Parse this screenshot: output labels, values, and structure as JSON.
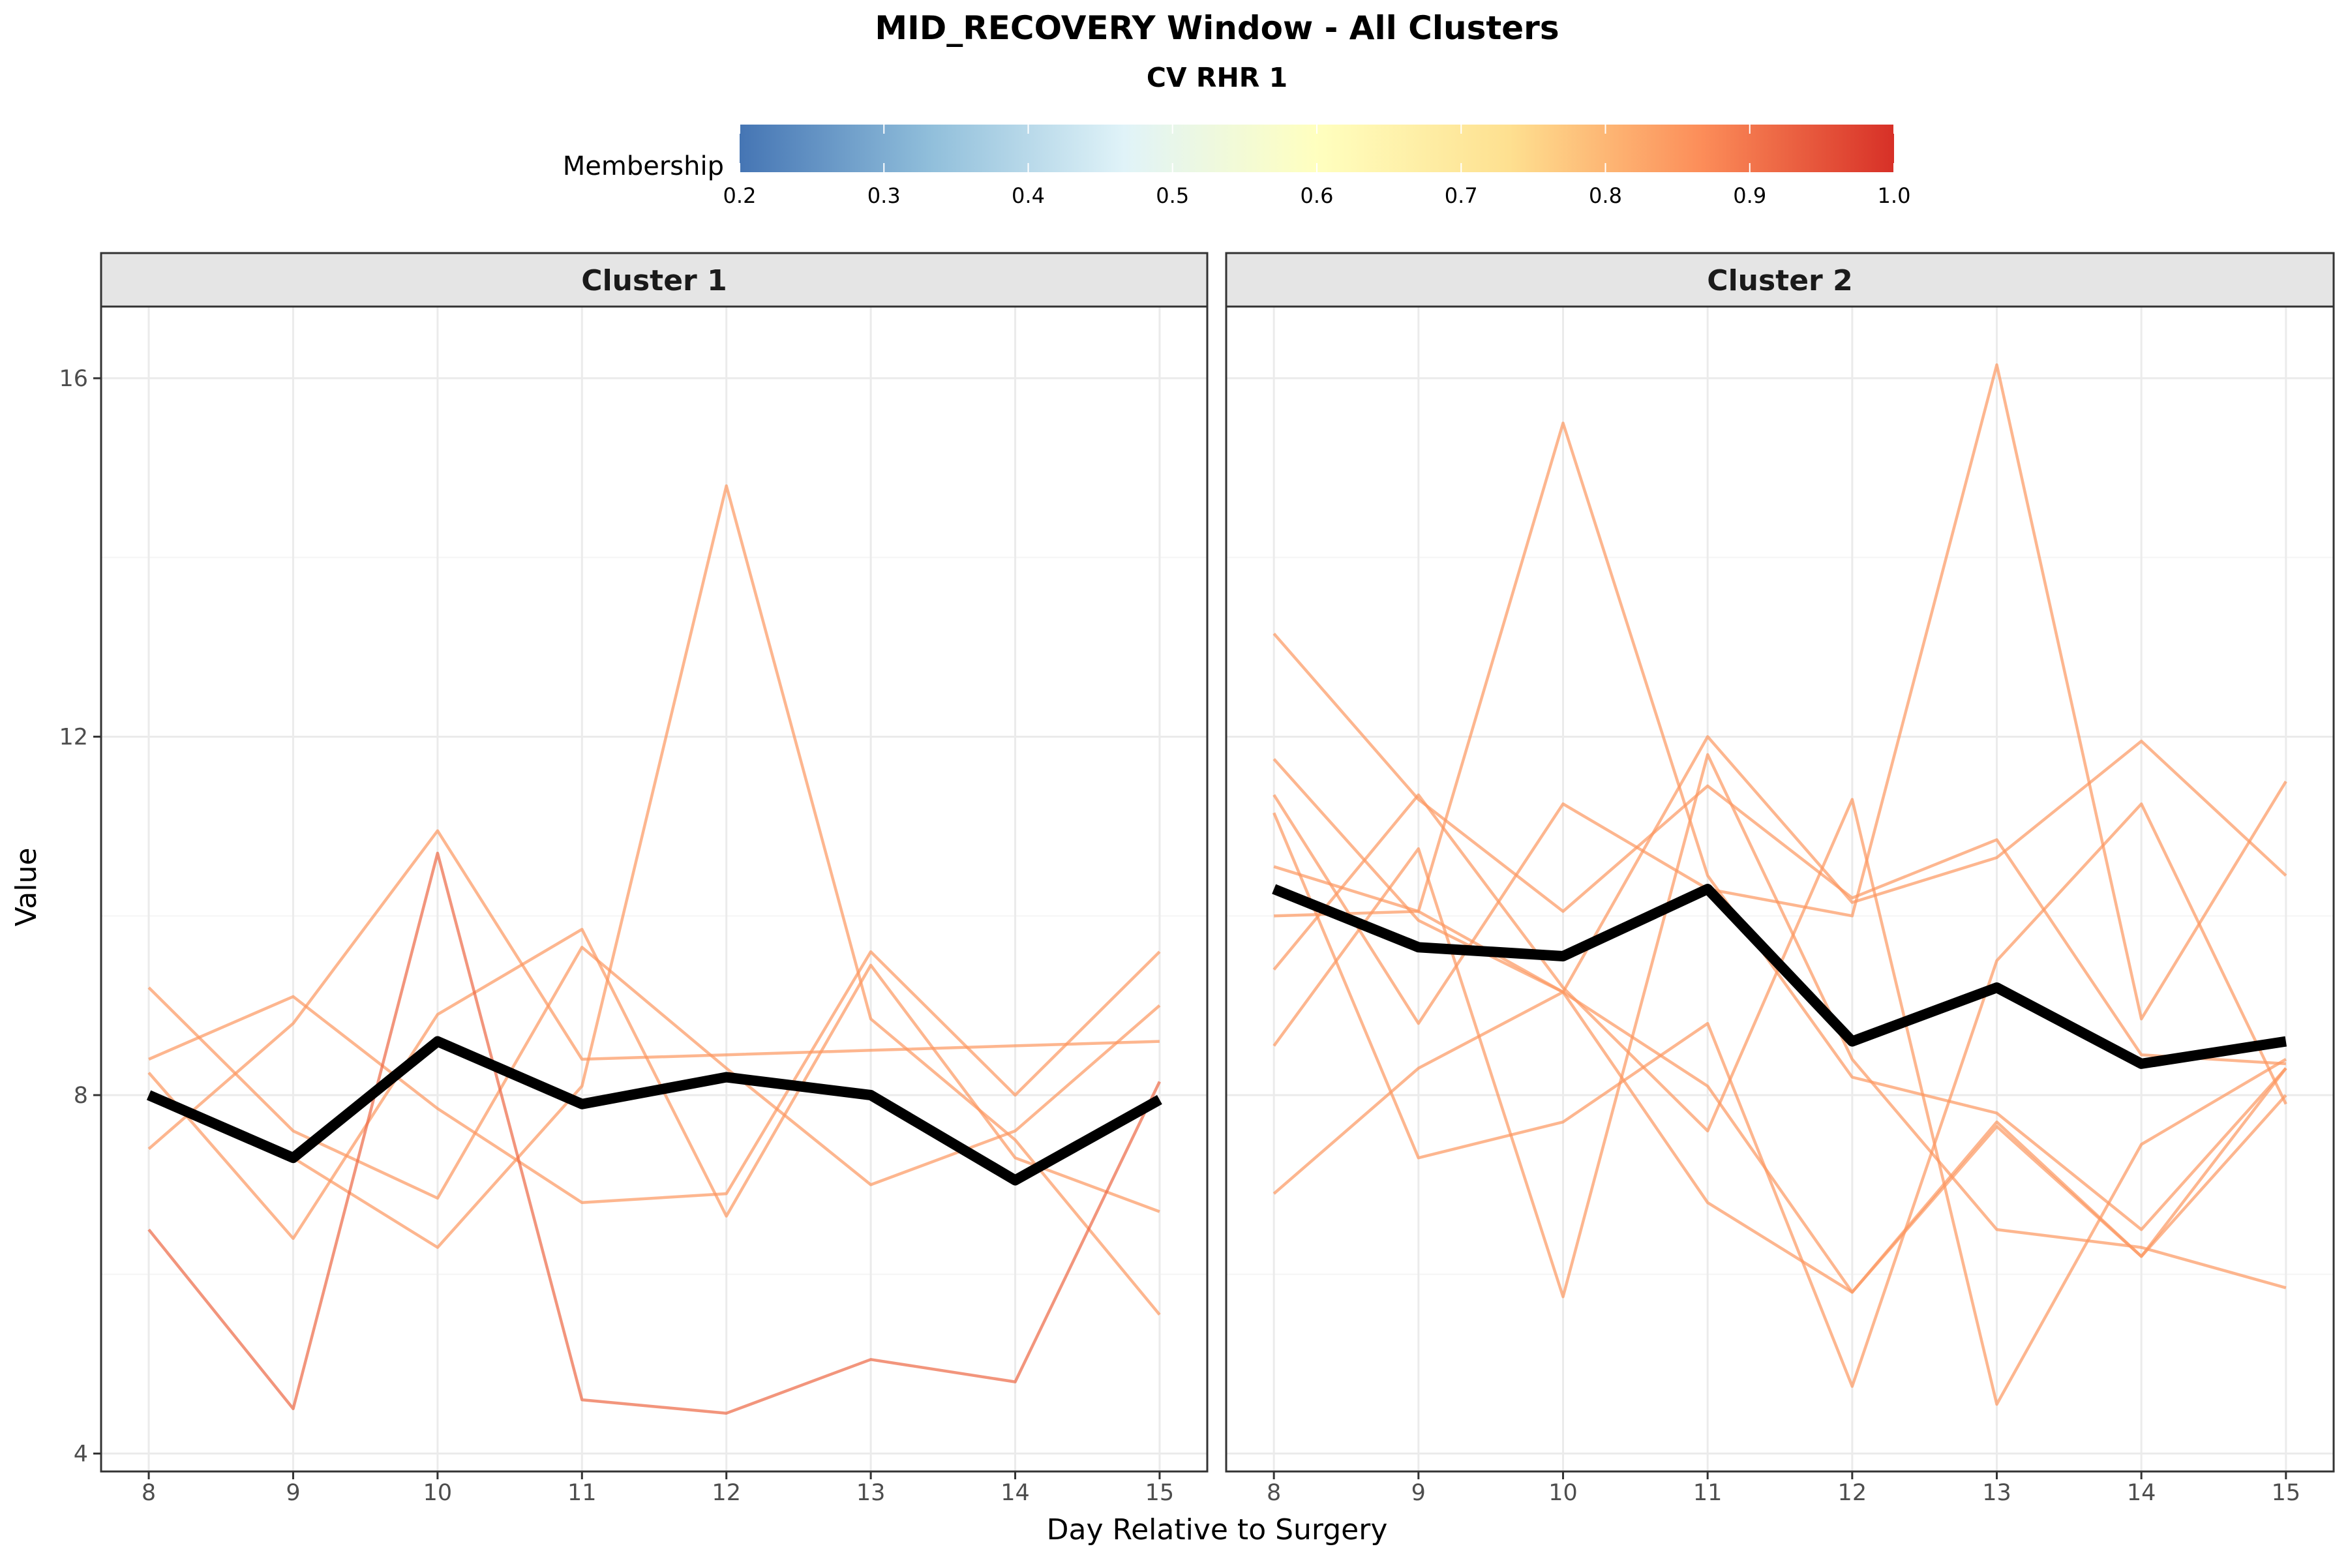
{
  "chart_data": {
    "type": "line",
    "title": "MID_RECOVERY Window - All Clusters",
    "subtitle": "CV RHR 1",
    "xlabel": "Day Relative to Surgery",
    "ylabel": "Value",
    "x": [
      8,
      9,
      10,
      11,
      12,
      13,
      14,
      15
    ],
    "xlim": [
      7.67,
      15.33
    ],
    "ylim": [
      3.8,
      16.8
    ],
    "y_ticks": [
      4,
      8,
      12,
      16
    ],
    "grid": true,
    "legend": {
      "title": "Membership",
      "placement": "top",
      "type": "colorbar",
      "range": [
        0.2,
        1.0
      ],
      "ticks": [
        "0.2",
        "0.3",
        "0.4",
        "0.5",
        "0.6",
        "0.7",
        "0.8",
        "0.9",
        "1.0"
      ],
      "colors": [
        "#4575b4",
        "#91bfdb",
        "#e0f3f8",
        "#ffffbf",
        "#fee090",
        "#fc8d59",
        "#d73027"
      ]
    },
    "facets": [
      {
        "label": "Cluster 1",
        "centroid": [
          8.0,
          7.3,
          8.6,
          7.9,
          8.2,
          8.0,
          7.05,
          7.95
        ],
        "members": [
          {
            "membership": 0.85,
            "values": [
              9.2,
              7.6,
              6.85,
              9.65,
              8.3,
              7.0,
              7.6,
              9.0
            ]
          },
          {
            "membership": 0.85,
            "values": [
              8.4,
              9.1,
              7.85,
              6.8,
              6.9,
              9.6,
              8.0,
              9.6
            ]
          },
          {
            "membership": 0.85,
            "values": [
              7.4,
              8.8,
              10.95,
              8.4,
              8.45,
              8.5,
              8.55,
              8.6
            ]
          },
          {
            "membership": 0.85,
            "values": [
              8.25,
              6.4,
              8.9,
              9.85,
              6.65,
              9.45,
              7.3,
              6.7
            ]
          },
          {
            "membership": 0.85,
            "values": [
              8.0,
              7.3,
              6.3,
              8.1,
              14.8,
              8.85,
              7.5,
              5.55
            ]
          },
          {
            "membership": 0.92,
            "values": [
              6.5,
              4.5,
              10.7,
              4.6,
              4.45,
              5.05,
              4.8,
              8.15
            ]
          }
        ]
      },
      {
        "label": "Cluster 2",
        "centroid": [
          10.3,
          9.65,
          9.55,
          10.3,
          8.6,
          9.2,
          8.35,
          8.6
        ],
        "members": [
          {
            "membership": 0.85,
            "values": [
              13.15,
              11.3,
              10.05,
              11.45,
              10.2,
              10.85,
              8.45,
              8.35
            ]
          },
          {
            "membership": 0.85,
            "values": [
              11.75,
              9.95,
              9.15,
              12.0,
              10.15,
              10.65,
              11.95,
              10.45
            ]
          },
          {
            "membership": 0.85,
            "values": [
              11.35,
              8.8,
              11.25,
              10.3,
              10.0,
              16.15,
              8.85,
              11.5
            ]
          },
          {
            "membership": 0.85,
            "values": [
              11.15,
              7.3,
              7.7,
              8.8,
              4.75,
              9.5,
              11.25,
              7.9
            ]
          },
          {
            "membership": 0.85,
            "values": [
              10.55,
              10.05,
              9.15,
              8.1,
              5.8,
              7.7,
              6.2,
              8.0
            ]
          },
          {
            "membership": 0.85,
            "values": [
              10.0,
              10.05,
              15.5,
              10.45,
              8.2,
              7.8,
              6.5,
              8.3
            ]
          },
          {
            "membership": 0.85,
            "values": [
              9.4,
              11.35,
              9.2,
              7.6,
              11.3,
              4.55,
              7.45,
              8.4
            ]
          },
          {
            "membership": 0.85,
            "values": [
              8.55,
              10.75,
              5.75,
              11.8,
              8.4,
              6.5,
              6.3,
              5.85
            ]
          },
          {
            "membership": 0.85,
            "values": [
              6.9,
              8.3,
              9.15,
              6.8,
              5.8,
              7.65,
              6.2,
              8.3
            ]
          }
        ]
      }
    ]
  }
}
